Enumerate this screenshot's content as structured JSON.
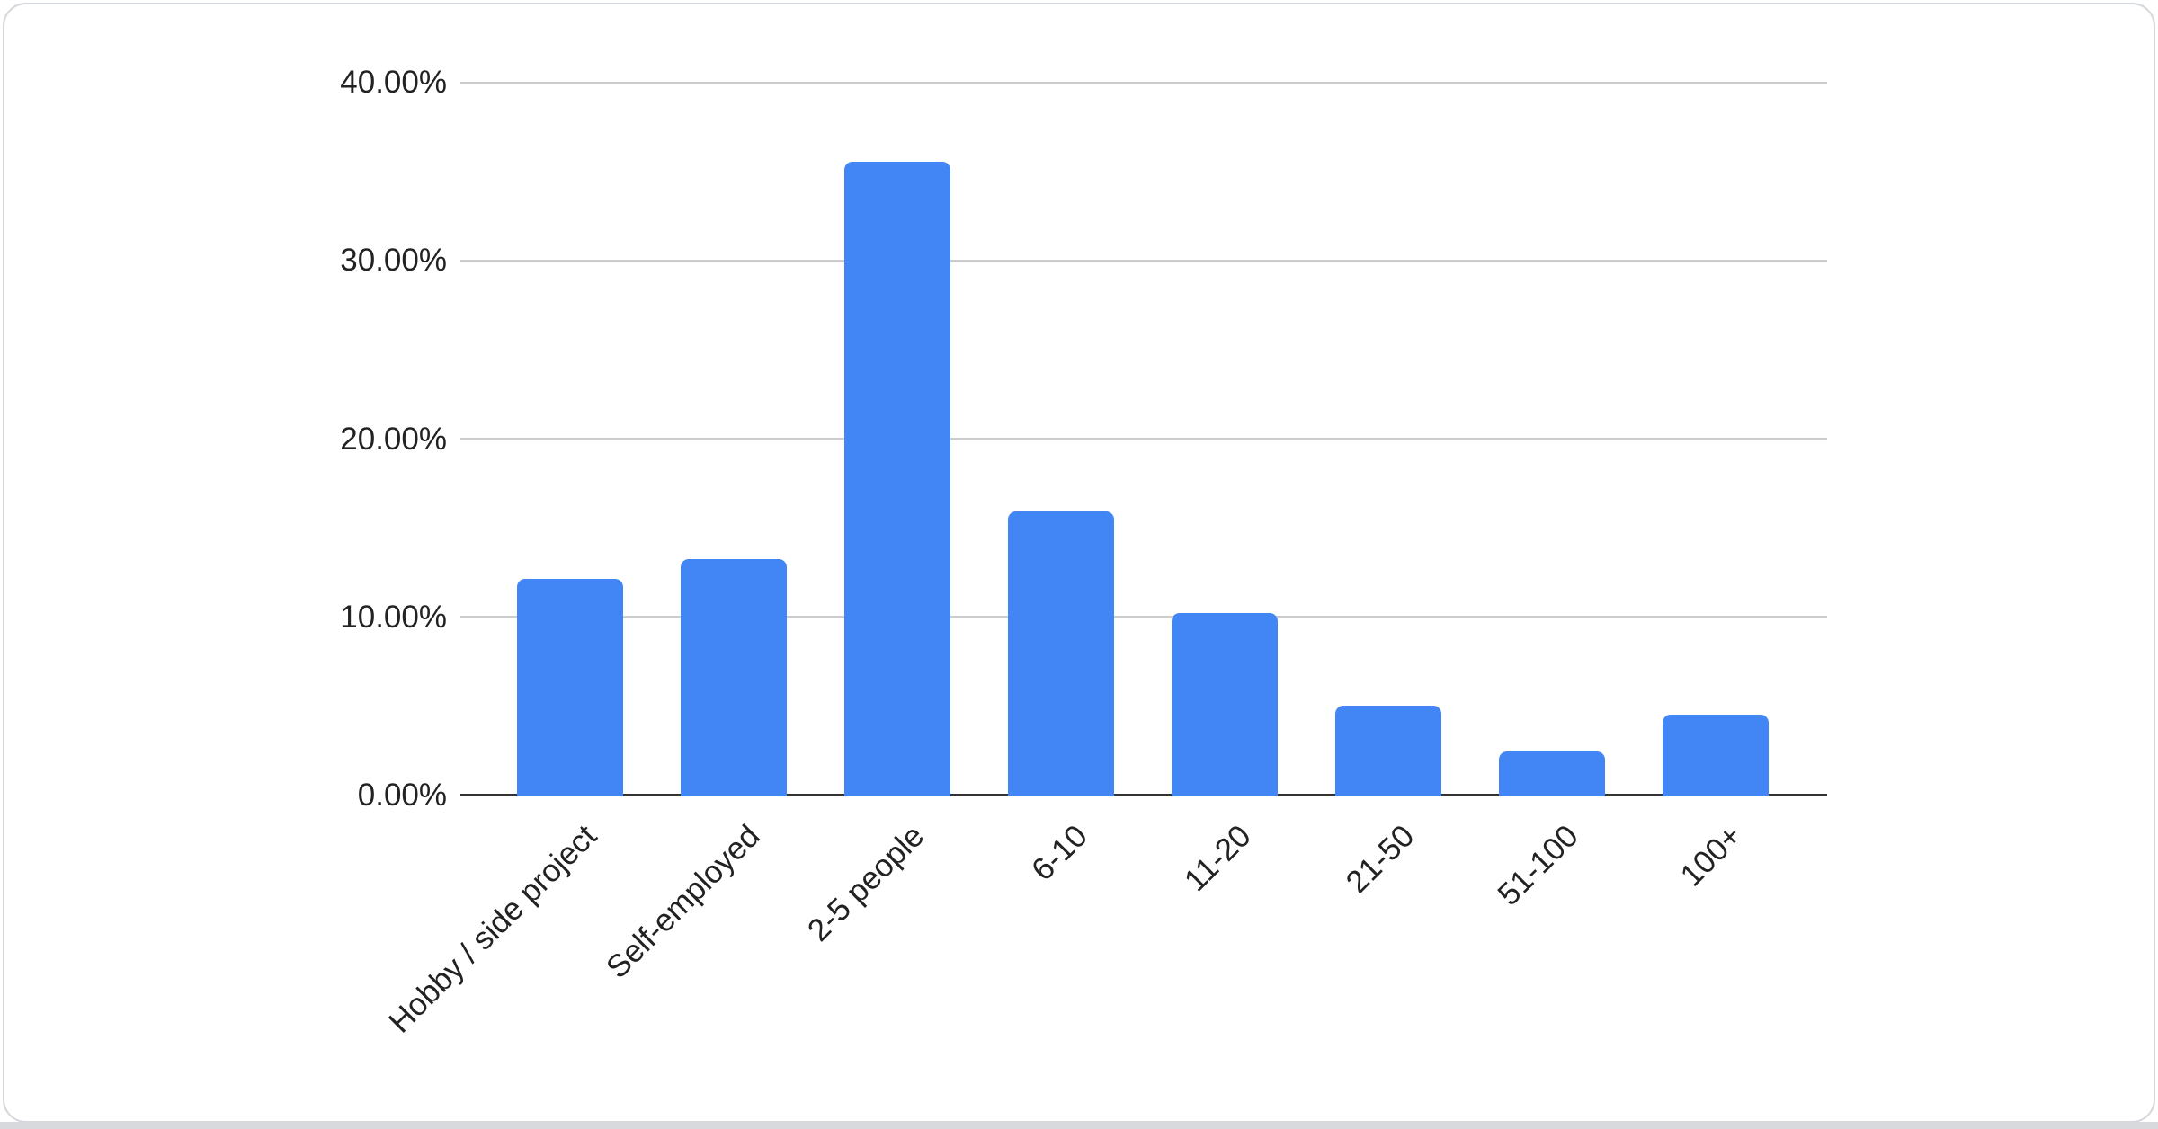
{
  "card": {
    "background": "#ffffff",
    "border_color": "#d4d7db",
    "bottom_edge_color": "#d7d9dc"
  },
  "chart_data": {
    "type": "bar",
    "title": "",
    "xlabel": "",
    "ylabel": "",
    "categories": [
      "Hobby / side project",
      "Self-employed",
      "2-5 people",
      "6-10",
      "11-20",
      "21-50",
      "51-100",
      "100+"
    ],
    "values": [
      12.2,
      13.3,
      35.6,
      16.0,
      10.3,
      5.1,
      2.5,
      4.6
    ],
    "value_unit": "%",
    "ylim": [
      0,
      40
    ],
    "y_ticks": [
      {
        "value": 0,
        "label": "0.00%"
      },
      {
        "value": 10,
        "label": "10.00%"
      },
      {
        "value": 20,
        "label": "20.00%"
      },
      {
        "value": 30,
        "label": "30.00%"
      },
      {
        "value": 40,
        "label": "40.00%"
      }
    ],
    "grid": true,
    "legend_position": "none",
    "x_label_rotation_deg": 45,
    "bar_color": "#4285f4",
    "grid_color": "#cccccc",
    "axis_line_color": "#333333",
    "label_color": "#222222"
  }
}
